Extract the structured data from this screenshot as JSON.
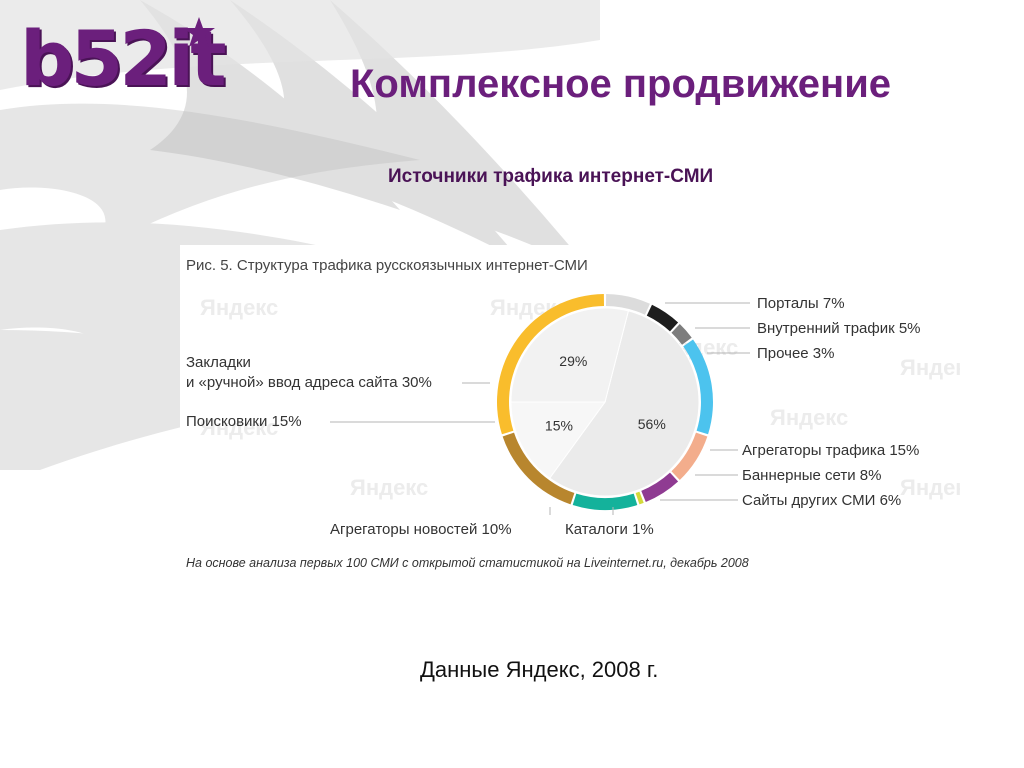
{
  "logo": {
    "text": "b52it"
  },
  "title": "Комплексное продвижение",
  "subtitle": "Источники трафика интернет-СМИ",
  "figure": {
    "caption": "Рис. 5. Структура трафика русскоязычных интернет-СМИ",
    "watermark": "Яндекс",
    "source_note": "На основе анализа первых 100 СМИ с открытой статистикой на Liveinternet.ru, декабрь 2008"
  },
  "footer": "Данные Яндекс, 2008 г.",
  "chart_data": {
    "type": "pie",
    "title": "Рис. 5. Структура трафика русскоязычных интернет-СМИ",
    "inner_pie": [
      {
        "label": "56%",
        "value": 56,
        "color": "#ebebeb"
      },
      {
        "label": "15%",
        "value": 15,
        "color": "#f7f7f7"
      },
      {
        "label": "29%",
        "value": 29,
        "color": "#f2f2f2"
      }
    ],
    "ring": [
      {
        "name": "Порталы",
        "value": 7,
        "label": "Порталы  7%",
        "color": "#dcdcdc"
      },
      {
        "name": "Внутренний трафик",
        "value": 5,
        "label": "Внутренний трафик  5%",
        "color": "#1e1e1e"
      },
      {
        "name": "Прочее",
        "value": 3,
        "label": "Прочее  3%",
        "color": "#7d7d7d"
      },
      {
        "name": "Агрегаторы трафика",
        "value": 15,
        "label": "Агрегаторы трафика  15%",
        "color": "#4cc3ee"
      },
      {
        "name": "Баннерные сети",
        "value": 8,
        "label": "Баннерные сети  8%",
        "color": "#f3ad8c"
      },
      {
        "name": "Сайты других СМИ",
        "value": 6,
        "label": "Сайты других СМИ  6%",
        "color": "#8f3b92"
      },
      {
        "name": "Каталоги",
        "value": 1,
        "label": "Каталоги  1%",
        "color": "#d3d93a"
      },
      {
        "name": "Агрегаторы новостей",
        "value": 10,
        "label": "Агрегаторы новостей  10%",
        "color": "#14b29b"
      },
      {
        "name": "Поисковики",
        "value": 15,
        "label": "Поисковики  15%",
        "color": "#b8862e"
      },
      {
        "name": "Закладки и «ручной» ввод адреса сайта",
        "value": 30,
        "label_lines": [
          "Закладки",
          "и «ручной» ввод адреса сайта  30%"
        ],
        "color": "#f9bd2c"
      }
    ]
  }
}
